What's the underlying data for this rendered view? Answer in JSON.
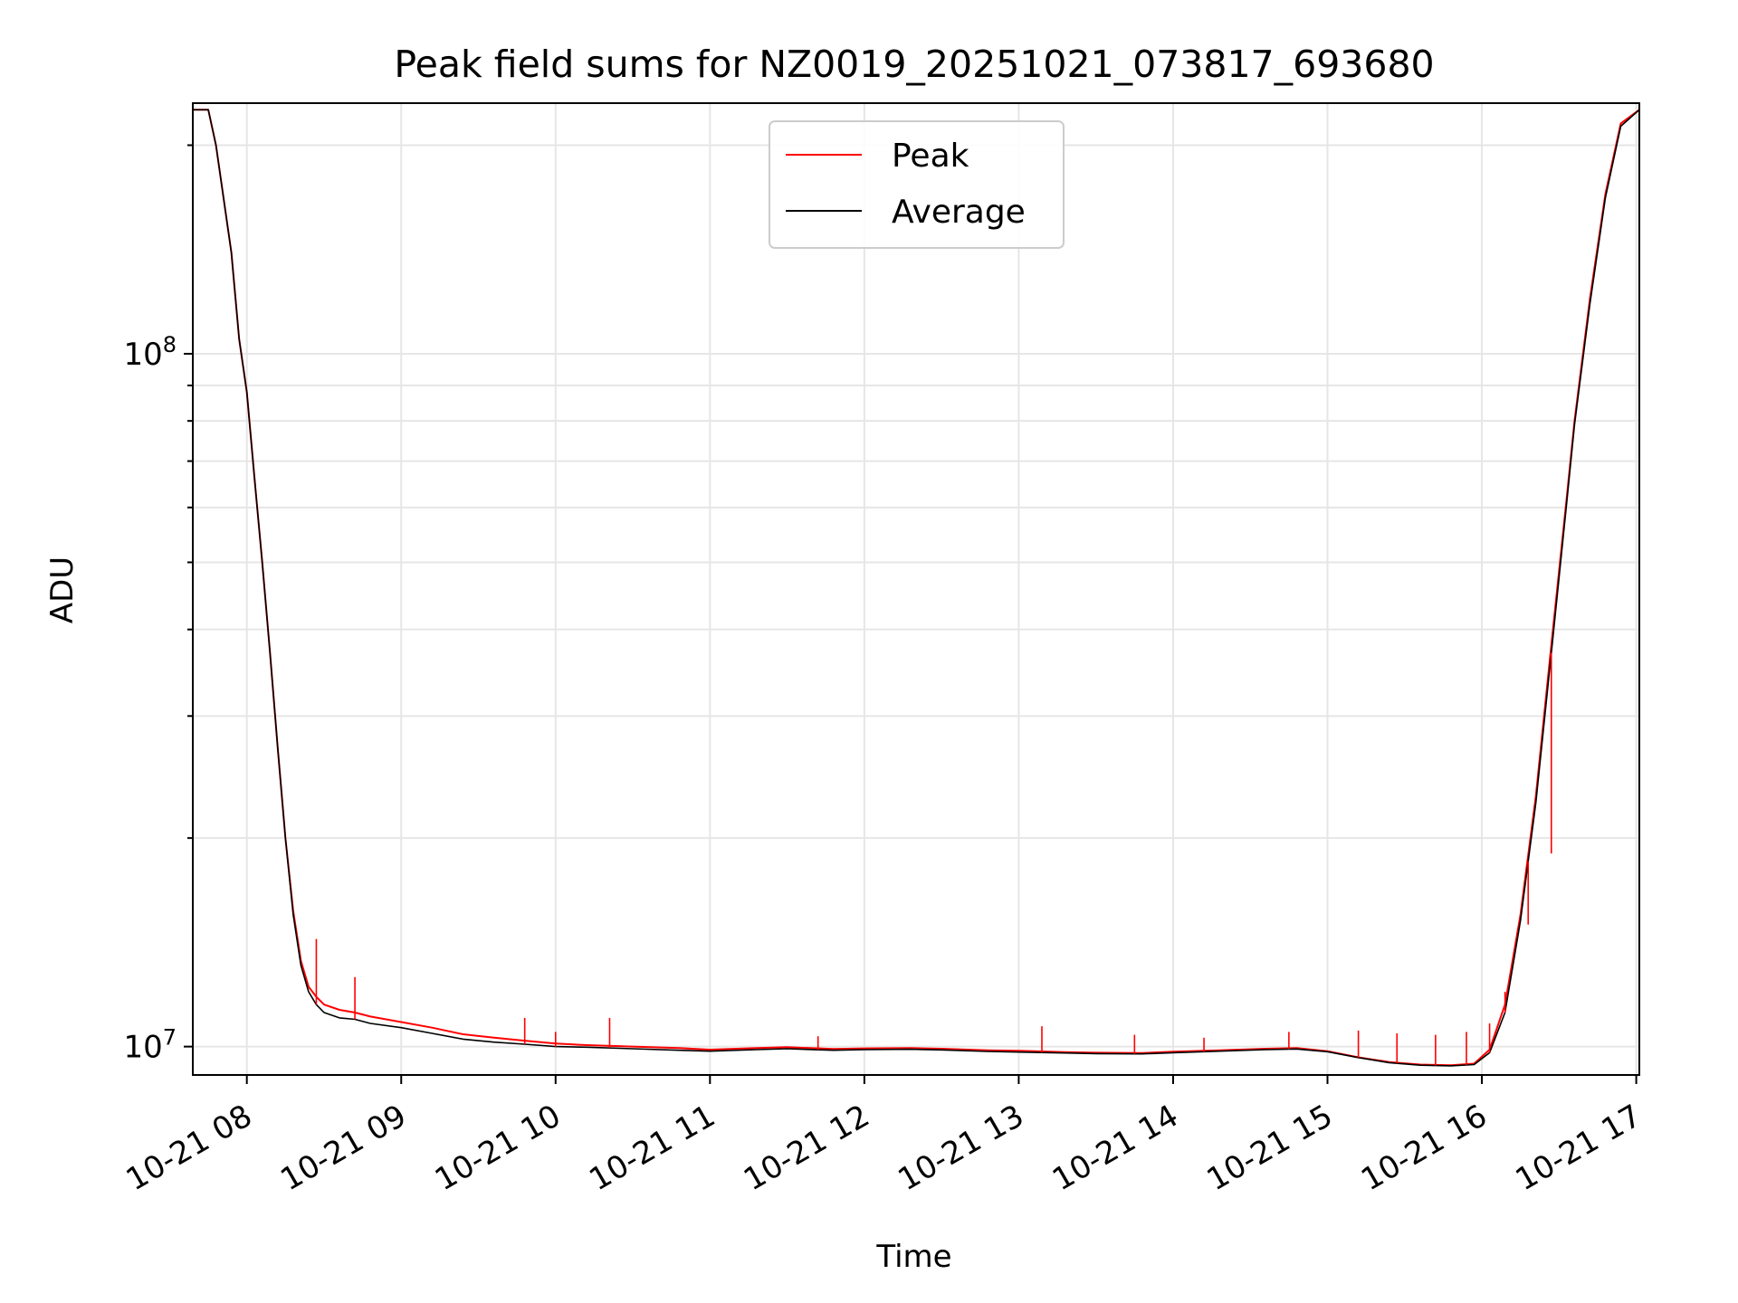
{
  "chart_data": {
    "type": "line",
    "title": "Peak field sums for NZ0019_20251021_073817_693680",
    "xlabel": "Time",
    "ylabel": "ADU",
    "yscale": "log",
    "xlim": [
      7.65,
      17.02
    ],
    "ylim": [
      9100000,
      230000000
    ],
    "x_tick_values": [
      8,
      9,
      10,
      11,
      12,
      13,
      14,
      15,
      16,
      17
    ],
    "x_tick_labels": [
      "10-21 08",
      "10-21 09",
      "10-21 10",
      "10-21 11",
      "10-21 12",
      "10-21 13",
      "10-21 14",
      "10-21 15",
      "10-21 16",
      "10-21 17"
    ],
    "y_major_ticks": [
      {
        "value": 10000000,
        "base": "10",
        "exp": "7"
      },
      {
        "value": 100000000,
        "base": "10",
        "exp": "8"
      }
    ],
    "y_minor_ticks": [
      20000000,
      30000000,
      40000000,
      50000000,
      60000000,
      70000000,
      80000000,
      90000000,
      200000000
    ],
    "grid": true,
    "legend_position": "upper center",
    "series": [
      {
        "name": "Peak",
        "color": "#ff0000",
        "x": [
          7.65,
          7.75,
          7.8,
          7.9,
          7.95,
          8.0,
          8.05,
          8.1,
          8.15,
          8.2,
          8.25,
          8.3,
          8.35,
          8.4,
          8.45,
          8.5,
          8.6,
          8.7,
          8.8,
          9.0,
          9.2,
          9.4,
          9.6,
          9.8,
          10.0,
          10.2,
          10.5,
          10.8,
          11.0,
          11.3,
          11.5,
          11.8,
          12.0,
          12.3,
          12.5,
          12.8,
          13.0,
          13.3,
          13.5,
          13.8,
          14.0,
          14.3,
          14.6,
          14.8,
          15.0,
          15.2,
          15.4,
          15.6,
          15.8,
          15.95,
          16.05,
          16.15,
          16.25,
          16.35,
          16.45,
          16.55,
          16.6,
          16.7,
          16.8,
          16.9,
          17.02
        ],
        "y": [
          225000000,
          225000000,
          200000000,
          140000000,
          105000000,
          88000000,
          66000000,
          50000000,
          37000000,
          27000000,
          20000000,
          15700000,
          13300000,
          12200000,
          11800000,
          11500000,
          11300000,
          11200000,
          11050000,
          10850000,
          10650000,
          10420000,
          10300000,
          10200000,
          10100000,
          10050000,
          10000000,
          9950000,
          9900000,
          9950000,
          9980000,
          9920000,
          9940000,
          9950000,
          9930000,
          9880000,
          9860000,
          9820000,
          9800000,
          9790000,
          9830000,
          9880000,
          9930000,
          9950000,
          9850000,
          9650000,
          9500000,
          9420000,
          9400000,
          9450000,
          9900000,
          11500000,
          15500000,
          23000000,
          38000000,
          62000000,
          80000000,
          120000000,
          170000000,
          215000000,
          225000000
        ]
      },
      {
        "name": "Average",
        "color": "#000000",
        "x": [
          7.65,
          7.75,
          7.8,
          7.9,
          7.95,
          8.0,
          8.05,
          8.1,
          8.15,
          8.2,
          8.25,
          8.3,
          8.35,
          8.4,
          8.45,
          8.5,
          8.6,
          8.7,
          8.8,
          9.0,
          9.2,
          9.4,
          9.6,
          9.8,
          10.0,
          10.2,
          10.5,
          10.8,
          11.0,
          11.3,
          11.5,
          11.8,
          12.0,
          12.3,
          12.5,
          12.8,
          13.0,
          13.3,
          13.5,
          13.8,
          14.0,
          14.3,
          14.6,
          14.8,
          15.0,
          15.2,
          15.4,
          15.6,
          15.8,
          15.95,
          16.05,
          16.15,
          16.25,
          16.35,
          16.45,
          16.55,
          16.6,
          16.7,
          16.8,
          16.9,
          17.02
        ],
        "y": [
          225000000,
          225000000,
          200000000,
          140000000,
          105000000,
          88000000,
          66000000,
          50000000,
          37000000,
          27000000,
          20000000,
          15500000,
          13100000,
          12000000,
          11500000,
          11200000,
          11000000,
          10950000,
          10800000,
          10650000,
          10450000,
          10250000,
          10150000,
          10080000,
          10000000,
          9980000,
          9930000,
          9880000,
          9850000,
          9900000,
          9930000,
          9880000,
          9900000,
          9910000,
          9890000,
          9840000,
          9820000,
          9790000,
          9770000,
          9760000,
          9800000,
          9850000,
          9900000,
          9920000,
          9830000,
          9640000,
          9480000,
          9400000,
          9380000,
          9420000,
          9800000,
          11200000,
          15200000,
          22500000,
          37000000,
          61000000,
          79000000,
          118000000,
          168000000,
          213000000,
          225000000
        ]
      }
    ],
    "peak_spikes": [
      {
        "x": 8.45,
        "y": 14300000
      },
      {
        "x": 8.7,
        "y": 12600000
      },
      {
        "x": 9.8,
        "y": 11000000
      },
      {
        "x": 10.0,
        "y": 10500000
      },
      {
        "x": 10.35,
        "y": 11000000
      },
      {
        "x": 11.7,
        "y": 10350000
      },
      {
        "x": 13.15,
        "y": 10700000
      },
      {
        "x": 13.75,
        "y": 10400000
      },
      {
        "x": 14.2,
        "y": 10300000
      },
      {
        "x": 14.75,
        "y": 10500000
      },
      {
        "x": 15.2,
        "y": 10550000
      },
      {
        "x": 15.45,
        "y": 10450000
      },
      {
        "x": 15.7,
        "y": 10400000
      },
      {
        "x": 15.9,
        "y": 10500000
      },
      {
        "x": 16.05,
        "y": 10800000
      },
      {
        "x": 16.15,
        "y": 12000000
      },
      {
        "x": 16.3,
        "y": 15000000
      },
      {
        "x": 16.45,
        "y": 19000000
      }
    ]
  }
}
